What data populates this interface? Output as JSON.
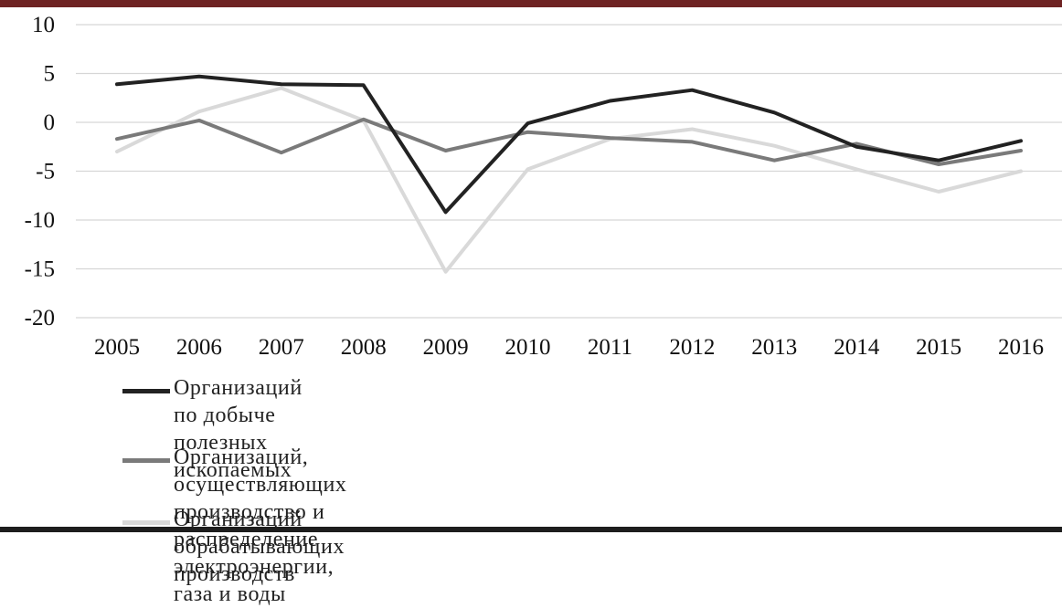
{
  "chart_data": {
    "type": "line",
    "title": "",
    "xlabel": "",
    "ylabel": "",
    "categories": [
      "2005",
      "2006",
      "2007",
      "2008",
      "2009",
      "2010",
      "2011",
      "2012",
      "2013",
      "2014",
      "2015",
      "2016"
    ],
    "ylim": [
      -20,
      10
    ],
    "yticks": [
      10,
      5,
      0,
      -5,
      -10,
      -15,
      -20
    ],
    "y_tick_labels": [
      "10",
      "5",
      "0",
      "-5",
      "-10",
      "-15",
      "-20"
    ],
    "grid": true,
    "legend_position": "bottom",
    "series": [
      {
        "name": "Организаций по добыче полезных ископаемых",
        "color": "#222222",
        "values": [
          3.9,
          4.7,
          3.9,
          3.8,
          -9.2,
          -0.1,
          2.2,
          3.3,
          1.0,
          -2.5,
          -3.9,
          -1.9
        ]
      },
      {
        "name": "Организаций, осуществляющих производство и распределение\nэлектроэнергии, газа и воды",
        "color": "#7a7a7a",
        "values": [
          -1.7,
          0.2,
          -3.1,
          0.3,
          -2.9,
          -1.0,
          -1.6,
          -2.0,
          -3.9,
          -2.2,
          -4.3,
          -2.9
        ]
      },
      {
        "name": "Организаций обрабатывающих производств",
        "color": "#d9d9d9",
        "values": [
          -3.0,
          1.1,
          3.5,
          0.2,
          -15.3,
          -4.8,
          -1.7,
          -0.7,
          -2.4,
          -4.8,
          -7.1,
          -5.0
        ]
      }
    ]
  },
  "frame": {
    "top_bar_color": "#6e2323",
    "bottom_bar_color": "#1e1e1e"
  }
}
